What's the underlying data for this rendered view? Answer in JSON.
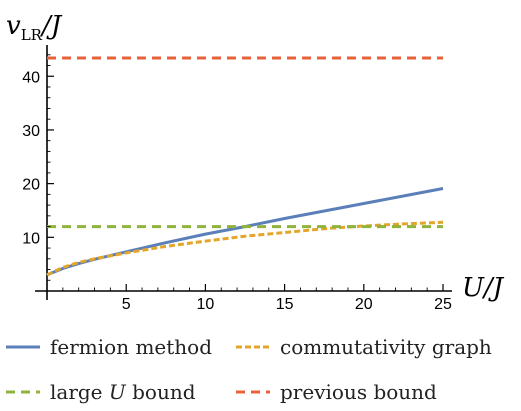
{
  "chart_data": {
    "type": "line",
    "xlabel": "U/J",
    "ylabel_main": "v",
    "ylabel_sub": "LR",
    "ylabel_tail": "/J",
    "xlim": [
      0,
      25
    ],
    "ylim": [
      -2,
      46
    ],
    "xticks": [
      5,
      10,
      15,
      20,
      25
    ],
    "yticks": [
      10,
      20,
      30,
      40
    ],
    "grid": false,
    "legend_position": "bottom",
    "series": [
      {
        "name": "fermion method",
        "color": "#5b7fb8",
        "style": "solid",
        "x": [
          0,
          1,
          2,
          3,
          5,
          7.5,
          10,
          12.5,
          15,
          17.5,
          20,
          22.5,
          25
        ],
        "y": [
          3.0,
          4.2,
          5.1,
          5.9,
          7.3,
          9.0,
          10.6,
          12.0,
          13.5,
          14.9,
          16.3,
          17.7,
          19.1
        ]
      },
      {
        "name": "commutativity graph",
        "color": "#e3a62b",
        "style": "dashed",
        "x": [
          0,
          1,
          2,
          3,
          5,
          7.5,
          10,
          12.5,
          15,
          17.5,
          20,
          22.5,
          25
        ],
        "y": [
          3.0,
          4.4,
          5.3,
          6.0,
          7.1,
          8.3,
          9.3,
          10.2,
          10.9,
          11.6,
          12.1,
          12.5,
          12.8
        ]
      },
      {
        "name": "large U bound",
        "color": "#8fb33b",
        "style": "dashed",
        "x": [
          0,
          25
        ],
        "y": [
          12.0,
          12.0
        ]
      },
      {
        "name": "previous bound",
        "color": "#e7623a",
        "style": "dashed",
        "x": [
          0,
          25
        ],
        "y": [
          43.4,
          43.4
        ]
      }
    ],
    "legend": {
      "fermion": "fermion method",
      "commut": "commutativity graph",
      "largeU_pre": "large",
      "largeU_var": "U",
      "largeU_post": "bound",
      "previous": "previous bound"
    }
  }
}
